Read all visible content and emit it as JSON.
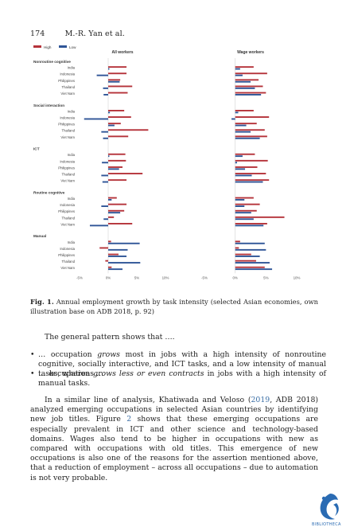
{
  "header": {
    "page_number": "174",
    "authors": "M.-R. Yan et al."
  },
  "chart_data": {
    "type": "bar",
    "orientation": "horizontal",
    "legend": {
      "position": "top-left",
      "items": [
        {
          "name": "High",
          "color": "#b5333a"
        },
        {
          "name": "Low",
          "color": "#2f5597"
        }
      ]
    },
    "panels": [
      {
        "title": "All workers"
      },
      {
        "title": "Wage workers"
      }
    ],
    "xlim": [
      -5,
      10
    ],
    "xticks": [
      "-5%",
      "0%",
      "5%",
      "10%"
    ],
    "groups": [
      {
        "name": "Nonroutine cognitive",
        "countries": [
          "India",
          "Indonesia",
          "Philippines",
          "Thailand",
          "Viet Nam"
        ],
        "all": {
          "High": [
            3.2,
            3.2,
            2.1,
            4.2,
            3.4
          ],
          "Low": [
            0.2,
            -2.0,
            2.0,
            -0.9,
            -0.8
          ]
        },
        "wage": {
          "High": [
            3.0,
            5.2,
            3.8,
            4.5,
            5.0
          ],
          "Low": [
            0.8,
            1.2,
            2.5,
            3.2,
            4.2
          ]
        }
      },
      {
        "name": "Social interaction",
        "countries": [
          "India",
          "Indonesia",
          "Philippines",
          "Thailand",
          "Viet Nam"
        ],
        "all": {
          "High": [
            2.8,
            4.0,
            2.2,
            7.0,
            3.5
          ],
          "Low": [
            0.3,
            -4.2,
            1.1,
            -1.2,
            -0.9
          ]
        },
        "wage": {
          "High": [
            3.0,
            5.5,
            3.5,
            4.8,
            5.2
          ],
          "Low": [
            0.5,
            -0.6,
            1.8,
            2.5,
            4.0
          ]
        }
      },
      {
        "name": "ICT",
        "countries": [
          "India",
          "Indonesia",
          "Philippines",
          "Thailand",
          "Viet Nam"
        ],
        "all": {
          "High": [
            3.0,
            3.1,
            2.5,
            6.0,
            3.2
          ],
          "Low": [
            0.2,
            -1.1,
            1.9,
            -1.2,
            -1.0
          ]
        },
        "wage": {
          "High": [
            3.2,
            5.3,
            3.6,
            5.0,
            5.5
          ],
          "Low": [
            1.2,
            0.3,
            1.6,
            2.7,
            4.5
          ]
        }
      },
      {
        "name": "Routine cognitive",
        "countries": [
          "India",
          "Indonesia",
          "Philippines",
          "Thailand",
          "Viet Nam"
        ],
        "all": {
          "High": [
            1.5,
            3.2,
            2.8,
            1.0,
            4.2
          ],
          "Low": [
            0.6,
            -1.2,
            2.1,
            -0.8,
            -3.2
          ]
        },
        "wage": {
          "High": [
            3.0,
            4.0,
            3.5,
            8.0,
            5.2
          ],
          "Low": [
            1.5,
            1.5,
            2.6,
            3.0,
            4.6
          ]
        }
      },
      {
        "name": "Manual",
        "countries": [
          "India",
          "Indonesia",
          "Philippines",
          "Thailand",
          "Viet Nam"
        ],
        "all": {
          "High": [
            0.5,
            -1.5,
            1.8,
            -0.5,
            0.6
          ],
          "Low": [
            5.5,
            3.4,
            3.2,
            5.6,
            2.5
          ]
        },
        "wage": {
          "High": [
            0.8,
            0.6,
            2.6,
            3.4,
            4.8
          ],
          "Low": [
            4.8,
            5.0,
            4.0,
            5.6,
            6.0
          ]
        }
      }
    ]
  },
  "caption": {
    "label": "Fig. 1.",
    "text": "Annual employment growth by task intensity (selected Asian economies, own illustration base on ADB 2018, p. 92)"
  },
  "body": {
    "intro": "The general pattern shows that ….",
    "bullet1_a": "… occupation ",
    "bullet1_em": "grows",
    "bullet1_b": " most in jobs with a high intensity of nonroutine cognitive, socially interactive, and ICT tasks, and a low intensity of manual tasks, whereas …",
    "bullet2_a": "… occupation ",
    "bullet2_em": "grows less or even contracts",
    "bullet2_b": " in jobs with a high intensity of manual tasks.",
    "para_a": "In a similar line of analysis, Khatiwada and Veloso (",
    "para_year": "2019",
    "para_b": ", ADB 2018) analyzed emerging occupations in selected Asian countries by identifying new job titles. Figure ",
    "para_fig": "2",
    "para_c": " shows that these emerging occupations are especially prevalent in ICT and other science and technology-based domains. Wages also tend to be higher in occupations with new as compared with occupations with old titles. This emergence of new occupations is also one of the reasons for the assertion mentioned above, that a reduction of employment – across all occupations – due to automation is not very probable."
  },
  "logo": {
    "text": "BIBLIOTHECA"
  }
}
